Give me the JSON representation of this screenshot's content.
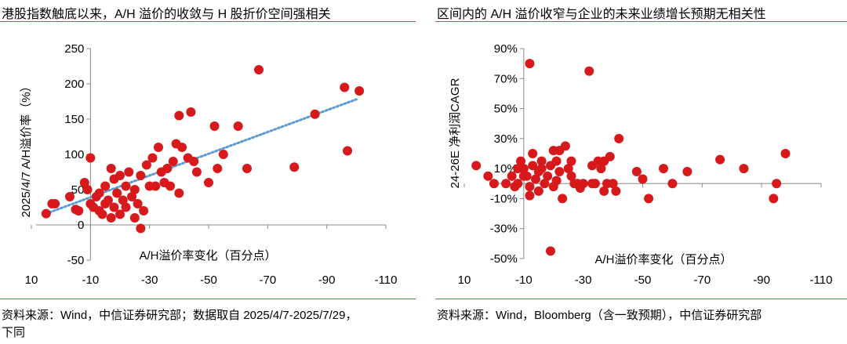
{
  "charts": [
    {
      "title": "港股指数触底以来，A/H 溢价的收敛与 H 股折价空间强相关",
      "source_lines": [
        "资料来源：Wind，中信证券研究部；数据取自 2025/4/7-2025/7/29，",
        "下同"
      ],
      "point_color": "#d7191c",
      "trend_color": "#5b9bd5",
      "chart_data": {
        "type": "scatter",
        "xlabel": "A/H溢价率变化（百分点）",
        "ylabel": "2025/4/7 A/H溢价率（%）",
        "x_ticks": [
          "10",
          "-10",
          "-30",
          "-50",
          "-70",
          "-90",
          "-110"
        ],
        "y_ticks": [
          "250",
          "200",
          "150",
          "100",
          "50",
          "0",
          "-50"
        ],
        "xlim": [
          10,
          -110
        ],
        "ylim": [
          -50,
          250
        ],
        "x_reversed": true,
        "trendline": {
          "style": "dotted",
          "points": [
            [
              5,
              16
            ],
            [
              -100,
              178
            ]
          ]
        },
        "points": [
          [
            5,
            16
          ],
          [
            3,
            30
          ],
          [
            2,
            30
          ],
          [
            -3,
            40
          ],
          [
            -5,
            22
          ],
          [
            -6,
            20
          ],
          [
            -8,
            60
          ],
          [
            -9,
            50
          ],
          [
            -10,
            30
          ],
          [
            -10,
            95
          ],
          [
            -11,
            25
          ],
          [
            -12,
            40
          ],
          [
            -13,
            45
          ],
          [
            -13,
            20
          ],
          [
            -14,
            15
          ],
          [
            -15,
            55
          ],
          [
            -15,
            30
          ],
          [
            -16,
            35
          ],
          [
            -17,
            80
          ],
          [
            -17,
            10
          ],
          [
            -18,
            65
          ],
          [
            -18,
            25
          ],
          [
            -19,
            45
          ],
          [
            -20,
            70
          ],
          [
            -20,
            15
          ],
          [
            -21,
            35
          ],
          [
            -22,
            55
          ],
          [
            -22,
            25
          ],
          [
            -23,
            75
          ],
          [
            -24,
            40
          ],
          [
            -25,
            50
          ],
          [
            -25,
            10
          ],
          [
            -26,
            30
          ],
          [
            -27,
            70
          ],
          [
            -27,
            -5
          ],
          [
            -28,
            20
          ],
          [
            -29,
            85
          ],
          [
            -30,
            55
          ],
          [
            -31,
            95
          ],
          [
            -32,
            55
          ],
          [
            -33,
            110
          ],
          [
            -34,
            75
          ],
          [
            -35,
            60
          ],
          [
            -36,
            80
          ],
          [
            -37,
            55
          ],
          [
            -38,
            90
          ],
          [
            -39,
            115
          ],
          [
            -40,
            45
          ],
          [
            -40,
            155
          ],
          [
            -41,
            110
          ],
          [
            -43,
            95
          ],
          [
            -44,
            160
          ],
          [
            -45,
            90
          ],
          [
            -46,
            75
          ],
          [
            -50,
            60
          ],
          [
            -52,
            140
          ],
          [
            -53,
            80
          ],
          [
            -55,
            100
          ],
          [
            -60,
            140
          ],
          [
            -63,
            80
          ],
          [
            -67,
            220
          ],
          [
            -79,
            82
          ],
          [
            -86,
            157
          ],
          [
            -96,
            195
          ],
          [
            -97,
            105
          ],
          [
            -101,
            190
          ]
        ]
      }
    },
    {
      "title": "区间内的 A/H 溢价收窄与企业的未来业绩增长预期无相关性",
      "source_lines": [
        "资料来源：Wind，Bloomberg（含一致预期），中信证券研究部"
      ],
      "point_color": "#d7191c",
      "chart_data": {
        "type": "scatter",
        "xlabel": "A/H溢价率变化（百分点）",
        "ylabel": "24-26E 净利润CAGR",
        "x_ticks": [
          "10",
          "-10",
          "-30",
          "-50",
          "-70",
          "-90",
          "-110"
        ],
        "y_ticks": [
          "90%",
          "70%",
          "50%",
          "30%",
          "10%",
          "-10%",
          "-30%",
          "-50%"
        ],
        "xlim": [
          10,
          -110
        ],
        "ylim": [
          -50,
          90
        ],
        "x_reversed": true,
        "points": [
          [
            6,
            12
          ],
          [
            2,
            5
          ],
          [
            0,
            0
          ],
          [
            -4,
            0
          ],
          [
            -6,
            5
          ],
          [
            -7,
            -2
          ],
          [
            -8,
            10
          ],
          [
            -8,
            0
          ],
          [
            -9,
            15
          ],
          [
            -10,
            5
          ],
          [
            -10,
            10
          ],
          [
            -11,
            5
          ],
          [
            -12,
            -2
          ],
          [
            -12,
            -8
          ],
          [
            -12,
            80
          ],
          [
            -13,
            12
          ],
          [
            -13,
            20
          ],
          [
            -14,
            3
          ],
          [
            -15,
            8
          ],
          [
            -15,
            -5
          ],
          [
            -16,
            10
          ],
          [
            -16,
            15
          ],
          [
            -17,
            0
          ],
          [
            -18,
            5
          ],
          [
            -19,
            12
          ],
          [
            -19,
            -45
          ],
          [
            -20,
            -2
          ],
          [
            -20,
            22
          ],
          [
            -21,
            15
          ],
          [
            -21,
            2
          ],
          [
            -22,
            8
          ],
          [
            -22,
            22
          ],
          [
            -23,
            -10
          ],
          [
            -24,
            25
          ],
          [
            -25,
            10
          ],
          [
            -26,
            15
          ],
          [
            -26,
            5
          ],
          [
            -27,
            0
          ],
          [
            -28,
            0
          ],
          [
            -29,
            -3
          ],
          [
            -30,
            0
          ],
          [
            -32,
            75
          ],
          [
            -33,
            12
          ],
          [
            -33,
            0
          ],
          [
            -34,
            0
          ],
          [
            -35,
            15
          ],
          [
            -36,
            10
          ],
          [
            -37,
            -5
          ],
          [
            -37,
            15
          ],
          [
            -38,
            0
          ],
          [
            -39,
            18
          ],
          [
            -40,
            0
          ],
          [
            -41,
            -5
          ],
          [
            -42,
            30
          ],
          [
            -48,
            8
          ],
          [
            -50,
            3
          ],
          [
            -52,
            -10
          ],
          [
            -57,
            10
          ],
          [
            -60,
            0
          ],
          [
            -65,
            8
          ],
          [
            -76,
            16
          ],
          [
            -84,
            10
          ],
          [
            -94,
            -10
          ],
          [
            -95,
            0
          ],
          [
            -98,
            20
          ]
        ]
      }
    }
  ]
}
